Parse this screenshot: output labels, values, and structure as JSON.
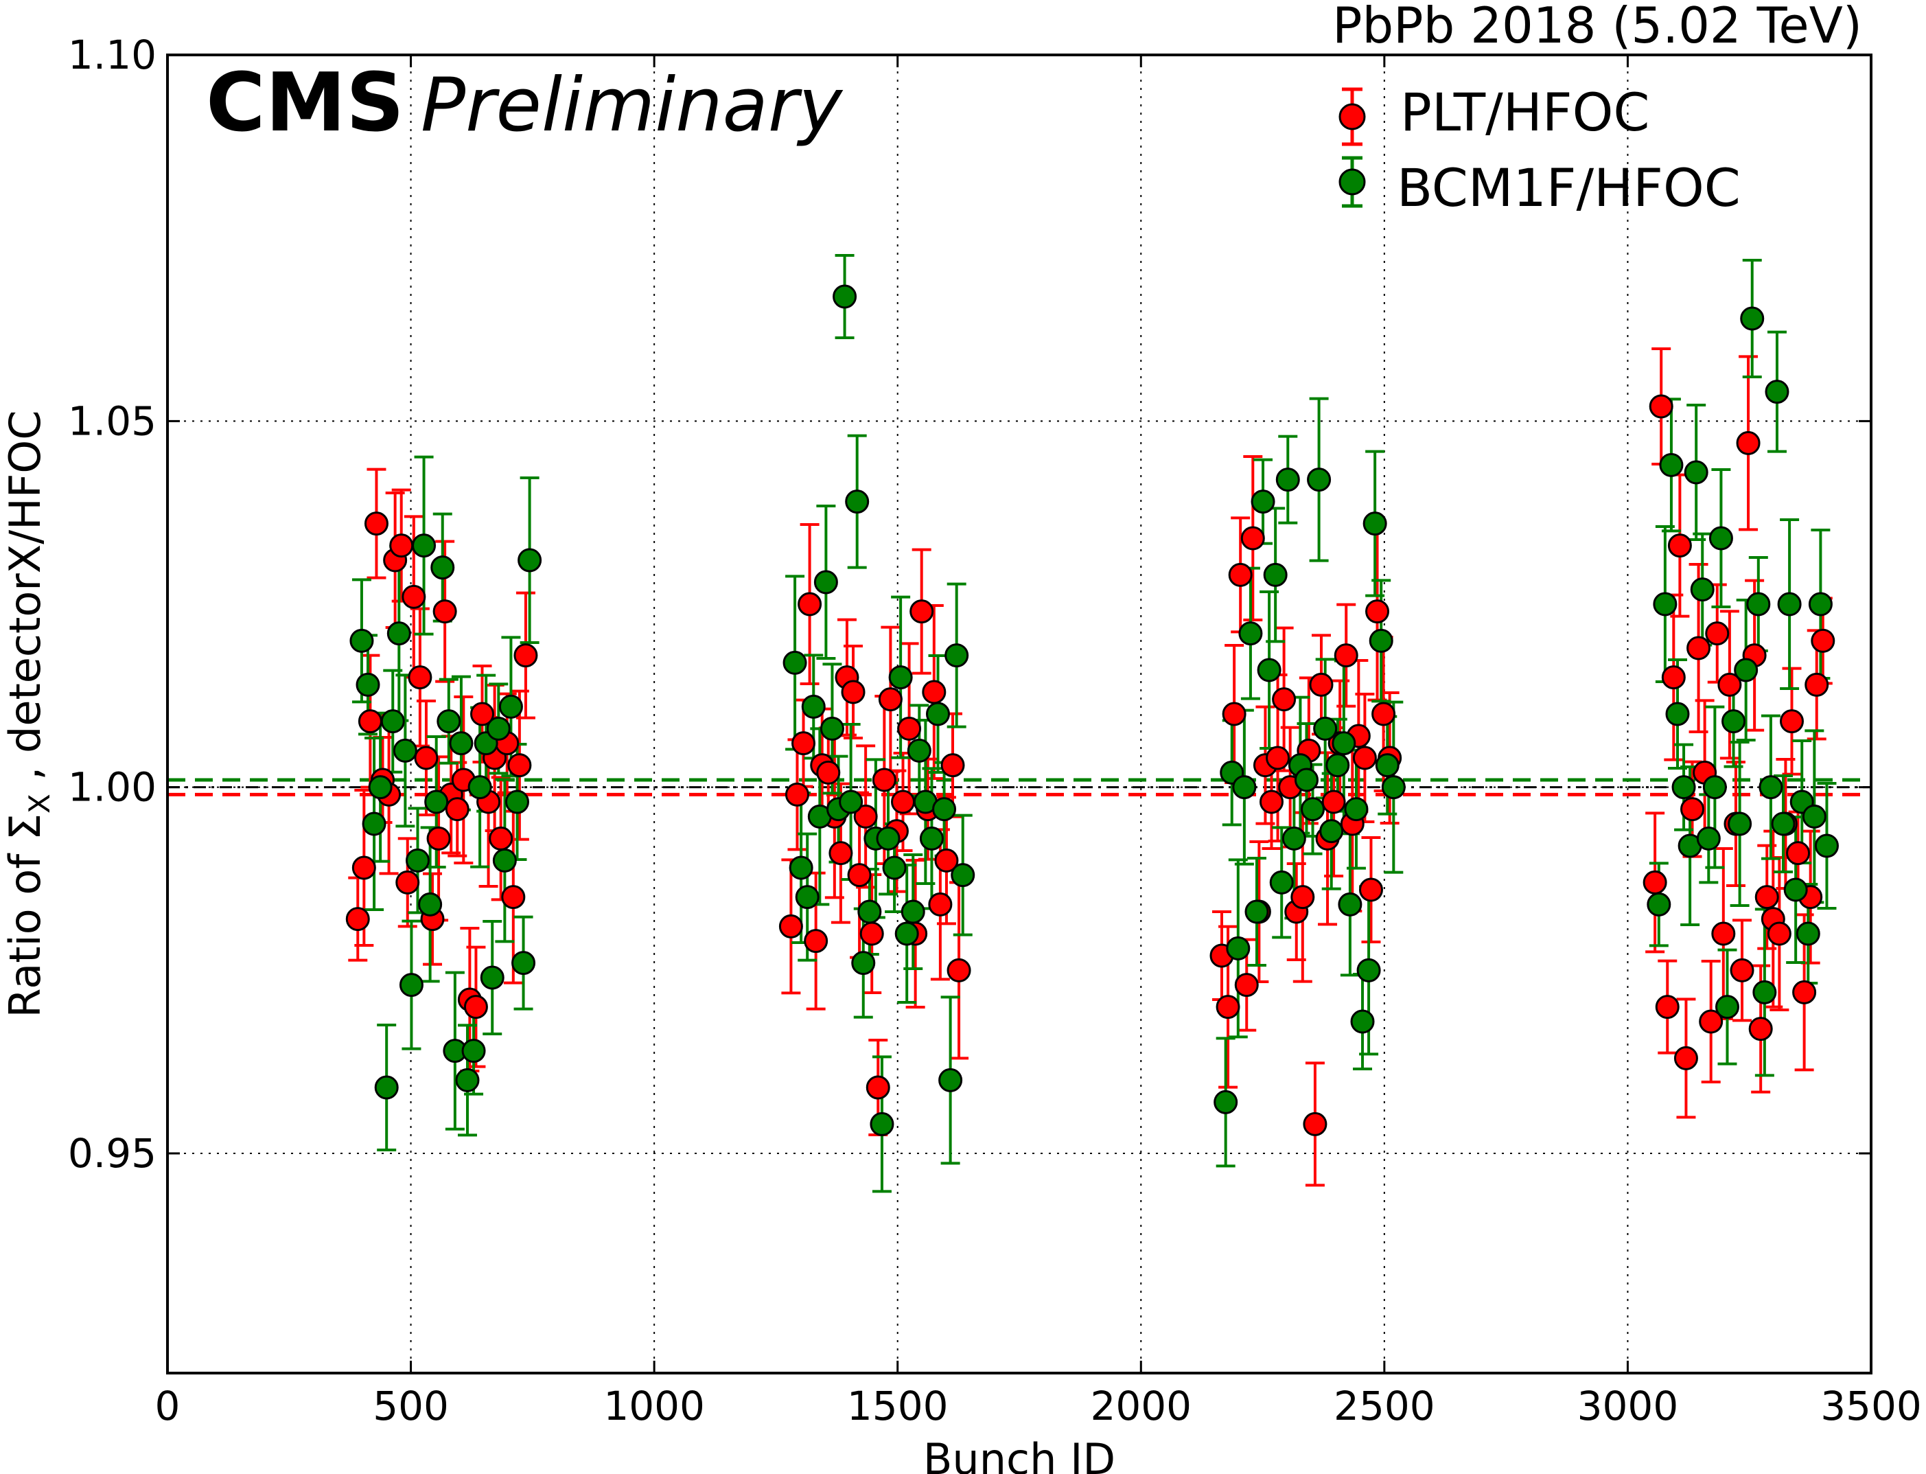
{
  "chart_data": {
    "type": "scatter",
    "title": "PbPb 2018 (5.02 TeV)",
    "experiment_label": "CMS",
    "status_label": "Preliminary",
    "xlabel": "Bunch ID",
    "ylabel": "Ratio of Σ_X , detectorX/HFOC",
    "ylabel_parts": {
      "prefix": "Ratio of Σ",
      "subscript": "X",
      "suffix": " , detectorX/HFOC"
    },
    "xlim": [
      0,
      3500
    ],
    "ylim": [
      0.92,
      1.1
    ],
    "x_ticks": [
      0,
      500,
      1000,
      1500,
      2000,
      2500,
      3000,
      3500
    ],
    "x_tick_labels": [
      "0",
      "500",
      "1000",
      "1500",
      "2000",
      "2500",
      "3000",
      "3500"
    ],
    "y_ticks": [
      0.95,
      1.0,
      1.05,
      1.1
    ],
    "y_tick_labels": [
      "0.95",
      "1.00",
      "1.05",
      "1.10"
    ],
    "grid": true,
    "legend_position": "top-right",
    "reference_lines": [
      {
        "series": "PLT/HFOC",
        "y": 0.999,
        "style": "dashed",
        "color": "#ff0000"
      },
      {
        "series": "BCM1F/HFOC",
        "y": 1.001,
        "style": "dashed",
        "color": "#008000"
      },
      {
        "series": "unity",
        "y": 1.0,
        "style": "dashdot",
        "color": "#000000"
      }
    ],
    "trains": [
      {
        "start": 395,
        "end": 740,
        "count": 28
      },
      {
        "start": 1285,
        "end": 1630,
        "count": 28
      },
      {
        "start": 2170,
        "end": 2515,
        "count": 28
      },
      {
        "start": 3060,
        "end": 3405,
        "count": 28
      }
    ],
    "series": [
      {
        "name": "PLT/HFOC",
        "color": "#ff0000",
        "values": [
          [
            0.982,
            0.989,
            1.009,
            1.036,
            1.001,
            0.999,
            1.031,
            1.033,
            0.987,
            1.026,
            1.015,
            1.004,
            0.982,
            0.993,
            1.024,
            0.999,
            0.997,
            1.001,
            0.971,
            0.97,
            1.01,
            0.998,
            1.004,
            0.993,
            1.006,
            0.985,
            1.003,
            1.018
          ],
          [
            0.981,
            0.999,
            1.006,
            1.025,
            0.979,
            1.003,
            1.002,
            0.996,
            0.991,
            1.015,
            1.013,
            0.988,
            0.996,
            0.98,
            0.959,
            1.001,
            1.012,
            0.994,
            0.998,
            1.008,
            0.98,
            1.024,
            0.997,
            1.013,
            0.984,
            0.99,
            1.003,
            0.975
          ],
          [
            0.977,
            0.97,
            1.01,
            1.029,
            0.973,
            1.034,
            0.983,
            1.003,
            0.998,
            1.004,
            1.012,
            1.0,
            0.983,
            0.985,
            1.005,
            0.954,
            1.014,
            0.993,
            0.998,
            1.006,
            1.018,
            0.995,
            1.007,
            1.004,
            0.986,
            1.024,
            1.01,
            1.004
          ],
          [
            0.987,
            1.052,
            0.97,
            1.015,
            1.033,
            0.963,
            0.997,
            1.019,
            1.002,
            0.968,
            1.021,
            0.98,
            1.014,
            0.995,
            0.975,
            1.047,
            1.018,
            0.967,
            0.985,
            0.982,
            0.98,
            0.995,
            1.009,
            0.991,
            0.972,
            0.985,
            1.014,
            1.02
          ]
        ]
      },
      {
        "name": "BCM1F/HFOC",
        "color": "#008000",
        "values": [
          [
            1.02,
            1.014,
            0.995,
            1.0,
            0.959,
            1.009,
            1.021,
            1.005,
            0.973,
            0.99,
            1.033,
            0.984,
            0.998,
            1.03,
            1.009,
            0.964,
            1.006,
            0.96,
            0.964,
            1.0,
            1.006,
            0.974,
            1.008,
            0.99,
            1.011,
            0.998,
            0.976,
            1.031
          ],
          [
            1.017,
            0.989,
            0.985,
            1.011,
            0.996,
            1.028,
            1.008,
            0.997,
            1.067,
            0.998,
            1.039,
            0.976,
            0.983,
            0.993,
            0.954,
            0.993,
            0.989,
            1.015,
            0.98,
            0.983,
            1.005,
            0.998,
            0.993,
            1.01,
            0.997,
            0.96,
            1.018,
            0.988
          ],
          [
            0.957,
            1.002,
            0.978,
            1.0,
            1.021,
            0.983,
            1.039,
            1.016,
            1.029,
            0.987,
            1.042,
            0.993,
            1.003,
            1.001,
            0.997,
            1.042,
            1.008,
            0.994,
            1.003,
            1.006,
            0.984,
            0.997,
            0.968,
            0.975,
            1.036,
            1.02,
            1.003,
            1.0
          ],
          [
            0.984,
            1.025,
            1.044,
            1.01,
            1.0,
            0.992,
            1.043,
            1.027,
            0.993,
            1.0,
            1.034,
            0.97,
            1.009,
            0.995,
            1.016,
            1.064,
            1.025,
            0.972,
            1.0,
            1.054,
            0.995,
            1.025,
            0.986,
            0.998,
            0.98,
            0.996,
            1.025,
            0.992
          ]
        ]
      }
    ]
  }
}
